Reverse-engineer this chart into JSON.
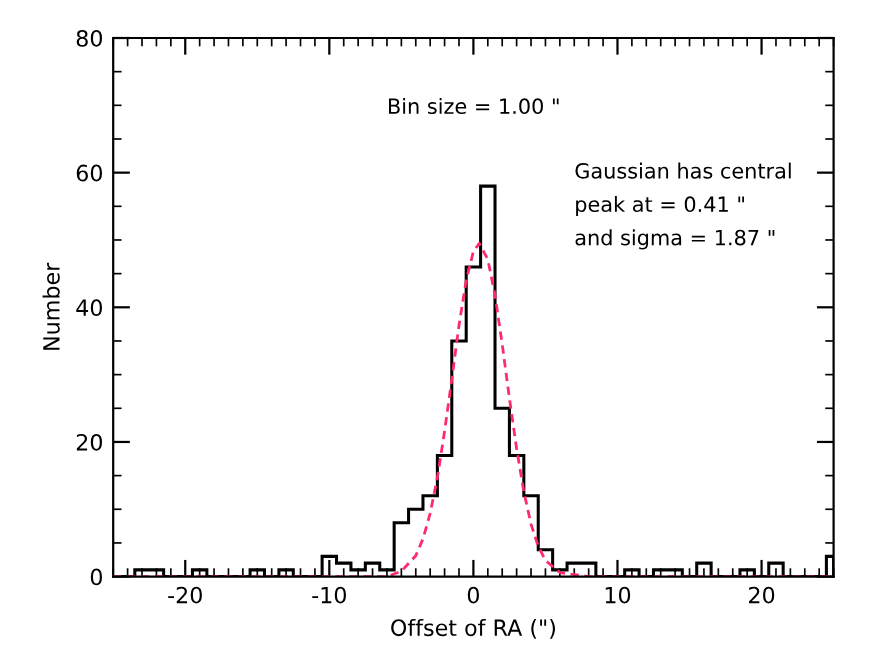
{
  "chart_data": {
    "type": "histogram",
    "xlabel": "Offset of RA (\")",
    "ylabel": "Number",
    "bins": [
      -24.5,
      -23.5,
      -22.5,
      -21.5,
      -20.5,
      -19.5,
      -18.5,
      -17.5,
      -16.5,
      -15.5,
      -14.5,
      -13.5,
      -12.5,
      -11.5,
      -10.5,
      -9.5,
      -8.5,
      -7.5,
      -6.5,
      -5.5,
      -4.5,
      -3.5,
      -2.5,
      -1.5,
      -0.5,
      0.5,
      1.5,
      2.5,
      3.5,
      4.5,
      5.5,
      6.5,
      7.5,
      8.5,
      9.5,
      10.5,
      11.5,
      12.5,
      13.5,
      14.5,
      15.5,
      16.5,
      17.5,
      18.5,
      19.5,
      20.5,
      21.5,
      22.5,
      23.5,
      24.5,
      25
    ],
    "values": [
      0,
      1,
      1,
      0,
      0,
      1,
      0,
      0,
      0,
      1,
      0,
      1,
      0,
      0,
      3,
      2,
      1,
      2,
      1,
      8,
      10,
      12,
      18,
      35,
      46,
      58,
      25,
      18,
      12,
      4,
      1,
      2,
      2,
      0,
      0,
      1,
      0,
      1,
      1,
      0,
      2,
      0,
      0,
      1,
      0,
      2,
      0,
      0,
      0,
      3
    ],
    "color": "#000000",
    "series": [
      {
        "type": "line",
        "color": "#ff2a6a",
        "line_style": "dashed",
        "x": [
          -25,
          -8,
          -6,
          -5,
          -4,
          -3.5,
          -3,
          -2.5,
          -2,
          -1.5,
          -1,
          -0.5,
          0,
          0.41,
          1,
          1.5,
          2,
          2.5,
          3,
          3.5,
          4,
          4.5,
          5,
          6,
          8,
          25
        ],
        "values": [
          0,
          0,
          0,
          0.8,
          3.1,
          5.6,
          9.4,
          14.7,
          21.6,
          29.3,
          37.3,
          44.0,
          48.3,
          49.5,
          47.1,
          41.8,
          34.5,
          26.5,
          19.0,
          12.6,
          7.8,
          4.5,
          2.4,
          0.6,
          0,
          0
        ]
      }
    ],
    "xlim": [
      -25,
      25
    ],
    "ylim": [
      0,
      80
    ],
    "xticks": [
      -20,
      -10,
      0,
      10,
      20
    ],
    "yticks": [
      0,
      20,
      40,
      60,
      80
    ],
    "grid": false,
    "legend": false,
    "annotations": [
      "Bin size = 1.00 \"",
      "Gaussian has central",
      "peak at = 0.41 \"",
      "and sigma = 1.87 \""
    ]
  }
}
